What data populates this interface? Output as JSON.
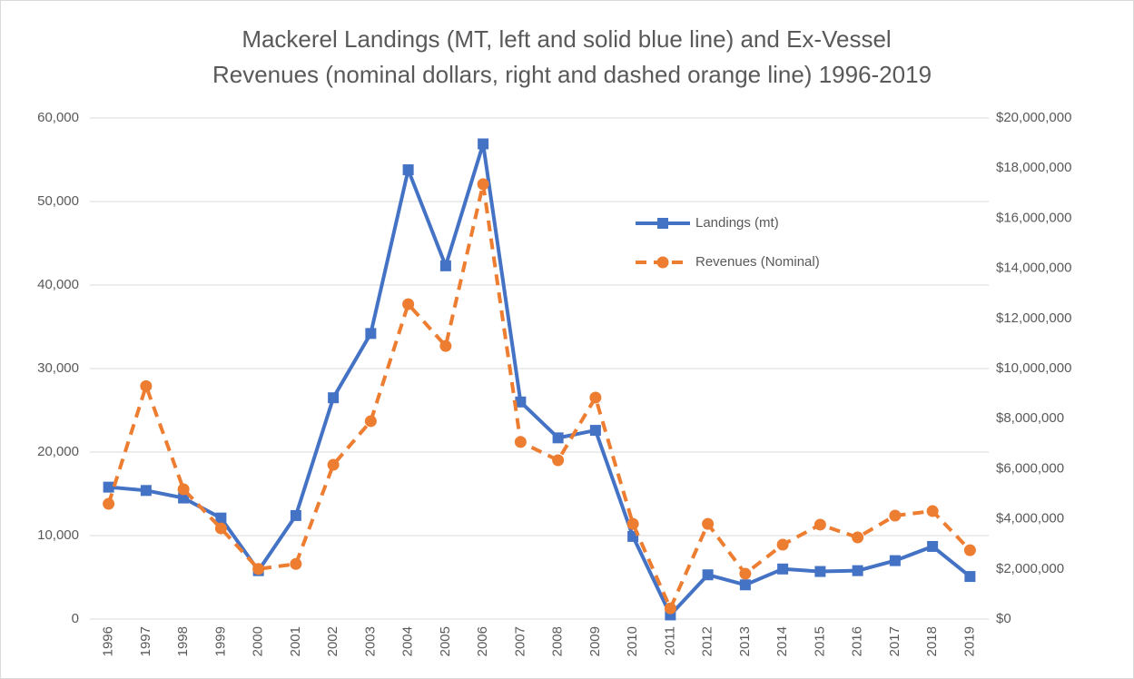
{
  "chart_data": {
    "type": "line",
    "title": [
      "Mackerel Landings (MT, left and solid blue line) and Ex-Vessel",
      "Revenues (nominal dollars, right and dashed orange line) 1996-2019"
    ],
    "categories": [
      "1996",
      "1997",
      "1998",
      "1999",
      "2000",
      "2001",
      "2002",
      "2003",
      "2004",
      "2005",
      "2006",
      "2007",
      "2008",
      "2009",
      "2010",
      "2011",
      "2012",
      "2013",
      "2014",
      "2015",
      "2016",
      "2017",
      "2018",
      "2019"
    ],
    "series": [
      {
        "name": "Landings (mt)",
        "color": "#4472c4",
        "marker": "square",
        "dash": false,
        "values": [
          15800,
          15400,
          14500,
          12100,
          5800,
          12400,
          26500,
          34200,
          53800,
          42300,
          56900,
          26000,
          21700,
          22600,
          9900,
          500,
          5300,
          4100,
          6000,
          5700,
          5800,
          7000,
          8700,
          5100
        ]
      },
      {
        "name": "Revenues (Nominal)",
        "color": "#ed7d31",
        "marker": "circle",
        "dash": true,
        "axis": "y2",
        "values": [
          4600000,
          9300000,
          5180000,
          3620000,
          2000000,
          2200000,
          6160000,
          7900000,
          12570000,
          10900000,
          17360000,
          7070000,
          6340000,
          8840000,
          3800000,
          430000,
          3800000,
          1810000,
          2970000,
          3770000,
          3260000,
          4130000,
          4310000,
          2750000
        ]
      }
    ],
    "ylim": [
      0,
      60000
    ],
    "yticks": [
      0,
      {
        "value": 10000,
        "label": "10,000"
      },
      {
        "value": 20000,
        "label": "20,000"
      },
      {
        "value": 30000,
        "label": "30,000"
      },
      {
        "value": 40000,
        "label": "40,000"
      },
      {
        "value": 50000,
        "label": "50,000"
      },
      {
        "value": 60000,
        "label": "60,000"
      }
    ],
    "y2lim": [
      0,
      20000000
    ],
    "y2ticks": [
      {
        "value": 0,
        "label": "$0"
      },
      {
        "value": 2000000,
        "label": "$2,000,000"
      },
      {
        "value": 4000000,
        "label": "$4,000,000"
      },
      {
        "value": 6000000,
        "label": "$6,000,000"
      },
      {
        "value": 8000000,
        "label": "$8,000,000"
      },
      {
        "value": 10000000,
        "label": "$10,000,000"
      },
      {
        "value": 12000000,
        "label": "$12,000,000"
      },
      {
        "value": 14000000,
        "label": "$14,000,000"
      },
      {
        "value": 16000000,
        "label": "$16,000,000"
      },
      {
        "value": 18000000,
        "label": "$18,000,000"
      },
      {
        "value": 20000000,
        "label": "$20,000,000"
      }
    ],
    "grid": true,
    "legend": "upper right"
  }
}
